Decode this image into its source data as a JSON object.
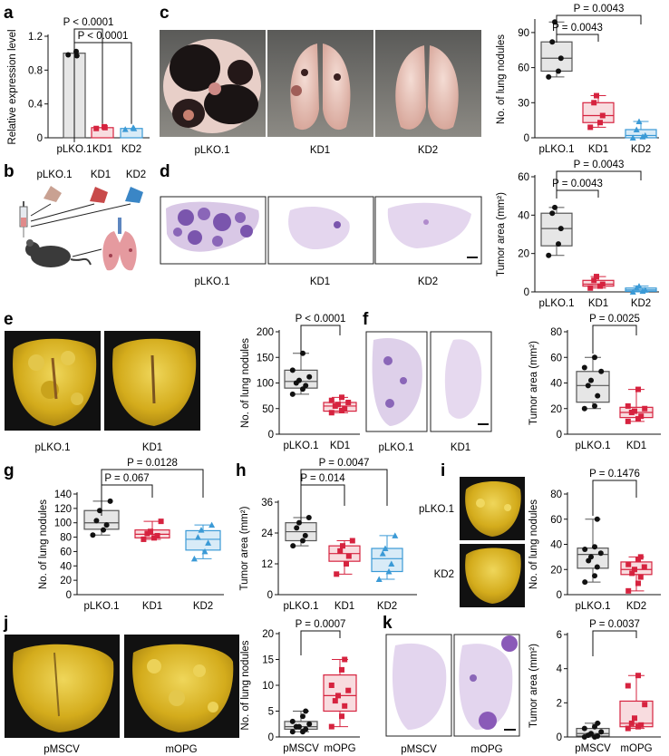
{
  "panel_labels": [
    "a",
    "b",
    "c",
    "d",
    "e",
    "f",
    "g",
    "h",
    "i",
    "j",
    "k"
  ],
  "photo_captions": {
    "c": [
      "pLKO.1",
      "KD1",
      "KD2"
    ],
    "d": [
      "pLKO.1",
      "KD1",
      "KD2"
    ],
    "e": [
      "pLKO.1",
      "KD1"
    ],
    "f": [
      "pLKO.1",
      "KD1"
    ],
    "i": [
      "pLKO.1",
      "KD2"
    ],
    "j": [
      "pMSCV",
      "mOPG"
    ],
    "k": [
      "pMSCV",
      "mOPG"
    ]
  },
  "schematic_b": {
    "labels": [
      "pLKO.1",
      "KD1",
      "KD2"
    ]
  },
  "colors": {
    "control": "#555555",
    "kd": "#d6233f",
    "kd2": "#3b9ad6",
    "box_control": "#e6e6e6",
    "box_kd": "#f8dcdf",
    "box_kd2": "#d8ebf7",
    "lung_yellow": "#d8b622",
    "he_purple": "#8a66b8"
  },
  "chart_data": [
    {
      "id": "a",
      "type": "bar",
      "ylabel": "Relative expression level",
      "categories": [
        "pLKO.1",
        "KD1",
        "KD2"
      ],
      "values": [
        1.0,
        0.12,
        0.11
      ],
      "ylim": [
        0,
        1.2
      ],
      "yticks": [
        "0",
        "0.4",
        "0.8",
        "1.2"
      ],
      "yticks_num": [
        0,
        0.4,
        0.8,
        1.2
      ],
      "annotations": [
        "P < 0.0001",
        "P < 0.0001"
      ],
      "points": [
        [
          0.98,
          1.02,
          0.97
        ],
        [
          0.11,
          0.13,
          0.12
        ],
        [
          0.1,
          0.12,
          0.11
        ]
      ]
    },
    {
      "id": "c",
      "type": "box",
      "ylabel": "No. of lung nodules",
      "categories": [
        "pLKO.1",
        "KD1",
        "KD2"
      ],
      "ylim": [
        0,
        100
      ],
      "yticks": [
        "0",
        "30",
        "60",
        "90"
      ],
      "yticks_num": [
        0,
        30,
        60,
        90
      ],
      "annotations": [
        "P = 0.0043",
        "P = 0.0043"
      ],
      "boxes": [
        {
          "min": 52,
          "q1": 57,
          "median": 68,
          "q3": 82,
          "max": 99
        },
        {
          "min": 9,
          "q1": 13,
          "median": 19,
          "q3": 30,
          "max": 36
        },
        {
          "min": 0,
          "q1": 0,
          "median": 2,
          "q3": 7,
          "max": 14
        }
      ],
      "points": [
        [
          52,
          57,
          68,
          82,
          99
        ],
        [
          9,
          13,
          19,
          30,
          36
        ],
        [
          0,
          1,
          2,
          7,
          14
        ]
      ]
    },
    {
      "id": "d",
      "type": "box",
      "ylabel": "Tumor area (mm²)",
      "categories": [
        "pLKO.1",
        "KD1",
        "KD2"
      ],
      "ylim": [
        0,
        60
      ],
      "yticks": [
        "0",
        "20",
        "40",
        "60"
      ],
      "yticks_num": [
        0,
        20,
        40,
        60
      ],
      "annotations": [
        "P = 0.0043",
        "P = 0.0043"
      ],
      "boxes": [
        {
          "min": 19,
          "q1": 24,
          "median": 33,
          "q3": 41,
          "max": 44
        },
        {
          "min": 2,
          "q1": 3,
          "median": 4,
          "q3": 6,
          "max": 8
        },
        {
          "min": 0,
          "q1": 0.3,
          "median": 1,
          "q3": 2,
          "max": 3
        }
      ],
      "points": [
        [
          19,
          25,
          33,
          41,
          44
        ],
        [
          2,
          3,
          4,
          6,
          8
        ],
        [
          0,
          0.4,
          1,
          2,
          3
        ]
      ]
    },
    {
      "id": "e",
      "type": "box",
      "ylabel": "No. of lung nodules",
      "categories": [
        "pLKO.1",
        "KD1"
      ],
      "ylim": [
        0,
        200
      ],
      "yticks": [
        "0",
        "50",
        "100",
        "150",
        "200"
      ],
      "yticks_num": [
        0,
        50,
        100,
        150,
        200
      ],
      "annotations": [
        "P < 0.0001"
      ],
      "boxes": [
        {
          "min": 78,
          "q1": 90,
          "median": 103,
          "q3": 125,
          "max": 158
        },
        {
          "min": 42,
          "q1": 45,
          "median": 55,
          "q3": 62,
          "max": 72
        }
      ],
      "points": [
        [
          78,
          88,
          95,
          100,
          105,
          112,
          125,
          158
        ],
        [
          42,
          46,
          50,
          55,
          58,
          62,
          66,
          72
        ]
      ]
    },
    {
      "id": "f",
      "type": "box",
      "ylabel": "Tumor area (mm²)",
      "categories": [
        "pLKO.1",
        "KD1"
      ],
      "ylim": [
        0,
        80
      ],
      "yticks": [
        "0",
        "20",
        "40",
        "60",
        "80"
      ],
      "yticks_num": [
        0,
        20,
        40,
        60,
        80
      ],
      "annotations": [
        "P = 0.0025"
      ],
      "boxes": [
        {
          "min": 20,
          "q1": 25,
          "median": 38,
          "q3": 49,
          "max": 60
        },
        {
          "min": 10,
          "q1": 13,
          "median": 17,
          "q3": 21,
          "max": 35
        }
      ],
      "points": [
        [
          20,
          22,
          30,
          38,
          42,
          49,
          52,
          60
        ],
        [
          10,
          12,
          14,
          17,
          18,
          20,
          22,
          35
        ]
      ]
    },
    {
      "id": "g",
      "type": "box",
      "ylabel": "No. of lung nodules",
      "categories": [
        "pLKO.1",
        "KD1",
        "KD2"
      ],
      "ylim": [
        0,
        140
      ],
      "yticks": [
        "0",
        "20",
        "40",
        "60",
        "80",
        "100",
        "120",
        "140"
      ],
      "yticks_num": [
        0,
        20,
        40,
        60,
        80,
        100,
        120,
        140
      ],
      "annotations": [
        "P = 0.0128",
        "P = 0.067"
      ],
      "boxes": [
        {
          "min": 83,
          "q1": 91,
          "median": 100,
          "q3": 117,
          "max": 130
        },
        {
          "min": 77,
          "q1": 79,
          "median": 84,
          "q3": 90,
          "max": 102
        },
        {
          "min": 50,
          "q1": 62,
          "median": 77,
          "q3": 89,
          "max": 97
        }
      ],
      "points": [
        [
          83,
          90,
          97,
          103,
          117,
          130
        ],
        [
          77,
          79,
          82,
          85,
          88,
          102
        ],
        [
          50,
          60,
          72,
          80,
          90,
          97
        ]
      ]
    },
    {
      "id": "h",
      "type": "box",
      "ylabel": "Tumor area (mm²)",
      "categories": [
        "pLKO.1",
        "KD1",
        "KD2"
      ],
      "ylim": [
        0,
        36
      ],
      "yticks": [
        "0",
        "12",
        "24",
        "36"
      ],
      "yticks_num": [
        0,
        12,
        24,
        36
      ],
      "annotations": [
        "P = 0.0047",
        "P = 0.014"
      ],
      "boxes": [
        {
          "min": 19,
          "q1": 21,
          "median": 24.5,
          "q3": 28,
          "max": 30
        },
        {
          "min": 8,
          "q1": 13,
          "median": 16,
          "q3": 19,
          "max": 21
        },
        {
          "min": 6,
          "q1": 9,
          "median": 14,
          "q3": 18,
          "max": 23
        }
      ],
      "points": [
        [
          19,
          21,
          23,
          26,
          28,
          30
        ],
        [
          8,
          12,
          15,
          17,
          19,
          21
        ],
        [
          6,
          9,
          12,
          16,
          18,
          23
        ]
      ]
    },
    {
      "id": "i",
      "type": "box",
      "ylabel": "No. of lung nodules",
      "categories": [
        "pLKO.1",
        "KD2"
      ],
      "ylim": [
        0,
        80
      ],
      "yticks": [
        "0",
        "20",
        "40",
        "60",
        "80"
      ],
      "yticks_num": [
        0,
        20,
        40,
        60,
        80
      ],
      "annotations": [
        "P = 0.1476"
      ],
      "boxes": [
        {
          "min": 10,
          "q1": 21,
          "median": 32,
          "q3": 37,
          "max": 60
        },
        {
          "min": 3,
          "q1": 16,
          "median": 20,
          "q3": 26,
          "max": 30
        }
      ],
      "points": [
        [
          10,
          15,
          22,
          27,
          30,
          33,
          36,
          38,
          60
        ],
        [
          3,
          9,
          14,
          17,
          20,
          22,
          24,
          28,
          30
        ]
      ]
    },
    {
      "id": "j",
      "type": "box",
      "ylabel": "No. of lung nodules",
      "categories": [
        "pMSCV",
        "mOPG"
      ],
      "ylim": [
        0,
        20
      ],
      "yticks": [
        "0",
        "5",
        "10",
        "15",
        "20"
      ],
      "yticks_num": [
        0,
        5,
        10,
        15,
        20
      ],
      "annotations": [
        "P = 0.0007"
      ],
      "boxes": [
        {
          "min": 1,
          "q1": 1.5,
          "median": 2,
          "q3": 3,
          "max": 5
        },
        {
          "min": 2,
          "q1": 5,
          "median": 8,
          "q3": 12,
          "max": 15
        }
      ],
      "points": [
        [
          1,
          1,
          1.5,
          2,
          2,
          2.5,
          3,
          4,
          5
        ],
        [
          2,
          4,
          6,
          7,
          8,
          9,
          10,
          13,
          15
        ]
      ]
    },
    {
      "id": "k",
      "type": "box",
      "ylabel": "Tumor area (mm²)",
      "categories": [
        "pMSCV",
        "mOPG"
      ],
      "ylim": [
        0,
        6
      ],
      "yticks": [
        "0",
        "2",
        "4",
        "6"
      ],
      "yticks_num": [
        0,
        2,
        4,
        6
      ],
      "annotations": [
        "P = 0.0037"
      ],
      "boxes": [
        {
          "min": 0,
          "q1": 0.05,
          "median": 0.2,
          "q3": 0.5,
          "max": 0.8
        },
        {
          "min": 0.5,
          "q1": 0.6,
          "median": 0.8,
          "q3": 2.1,
          "max": 3.6
        }
      ],
      "points": [
        [
          0,
          0,
          0.05,
          0.1,
          0.2,
          0.3,
          0.5,
          0.6,
          0.8
        ],
        [
          0.5,
          0.6,
          0.7,
          0.8,
          1.1,
          1.9,
          3.0,
          3.6
        ]
      ]
    }
  ]
}
